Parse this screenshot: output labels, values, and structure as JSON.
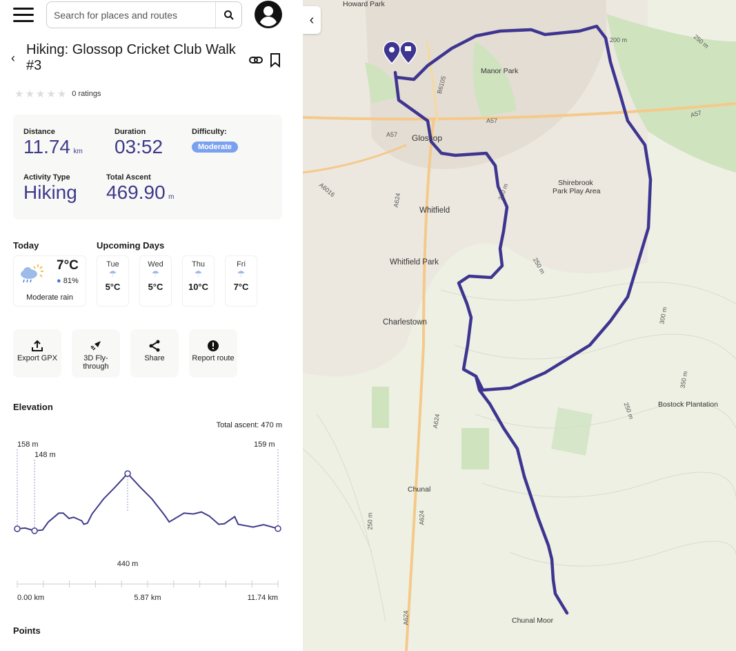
{
  "header": {
    "search_placeholder": "Search for places and routes"
  },
  "route": {
    "title": "Hiking: Glossop Cricket Club Walk #3",
    "ratings_label": "0 ratings",
    "stars_filled": 0,
    "stars_total": 5
  },
  "stats": {
    "distance_label": "Distance",
    "distance_value": "11.74",
    "distance_unit": "km",
    "duration_label": "Duration",
    "duration_value": "03:52",
    "difficulty_label": "Difficulty:",
    "difficulty_value": "Moderate",
    "activity_label": "Activity Type",
    "activity_value": "Hiking",
    "ascent_label": "Total Ascent",
    "ascent_value": "469.90",
    "ascent_unit": "m"
  },
  "weather": {
    "today_label": "Today",
    "upcoming_label": "Upcoming Days",
    "today": {
      "temp": "7°C",
      "humidity": "81%",
      "desc": "Moderate rain"
    },
    "days": [
      {
        "name": "Tue",
        "temp": "5°C"
      },
      {
        "name": "Wed",
        "temp": "5°C"
      },
      {
        "name": "Thu",
        "temp": "10°C"
      },
      {
        "name": "Fri",
        "temp": "7°C"
      }
    ]
  },
  "actions": [
    {
      "label": "Export GPX",
      "icon": "upload-icon"
    },
    {
      "label": "3D Fly-through",
      "icon": "rocket-icon"
    },
    {
      "label": "Share",
      "icon": "share-icon"
    },
    {
      "label": "Report route",
      "icon": "alert-icon"
    }
  ],
  "elevation": {
    "heading": "Elevation",
    "total_ascent": "Total ascent: 470 m",
    "points_heading": "Points"
  },
  "chart_data": {
    "type": "line",
    "title": "Elevation",
    "xlabel": "km",
    "ylabel": "m",
    "x": [
      0,
      0.36,
      0.78,
      1.14,
      1.4,
      1.87,
      2.07,
      2.33,
      2.54,
      2.9,
      3.0,
      3.16,
      3.37,
      3.89,
      4.4,
      4.97,
      5.54,
      6.06,
      6.63,
      6.84,
      7.51,
      7.93,
      8.29,
      8.65,
      9.07,
      9.33,
      9.79,
      9.95,
      10.62,
      11.09,
      11.74
    ],
    "y": [
      158,
      162,
      148,
      152,
      193,
      238,
      238,
      211,
      217,
      199,
      181,
      187,
      234,
      311,
      370,
      440,
      370,
      311,
      228,
      193,
      238,
      234,
      244,
      223,
      181,
      184,
      220,
      181,
      167,
      179,
      159
    ],
    "ylim": [
      0,
      470
    ],
    "xlim": [
      0,
      11.74
    ],
    "annotations": [
      {
        "x": 0,
        "y": 158,
        "label": "158 m"
      },
      {
        "x": 0.78,
        "y": 148,
        "label": "148 m"
      },
      {
        "x": 4.97,
        "y": 440,
        "label": "440 m"
      },
      {
        "x": 11.74,
        "y": 159,
        "label": "159 m"
      }
    ],
    "xticks": [
      "0.00 km",
      "5.87 km",
      "11.74 km"
    ],
    "series_color": "#3d3a8a"
  },
  "map": {
    "labels": [
      "Howard Park",
      "Manor Park",
      "Glossop",
      "Shirebrook",
      "Park Play Area",
      "Whitfield",
      "Whitfield Park",
      "Charlestown",
      "Chunal",
      "Bostock Plantation",
      "Chunal Moor"
    ],
    "roads": [
      "A57",
      "A57",
      "A57",
      "B6105",
      "A624",
      "A624",
      "A624",
      "A624",
      "A6016"
    ],
    "contours": [
      "200 m",
      "250 m",
      "250 m",
      "250 m",
      "300 m",
      "350 m",
      "250 m",
      "200 m"
    ],
    "route_color": "#3d3590"
  }
}
